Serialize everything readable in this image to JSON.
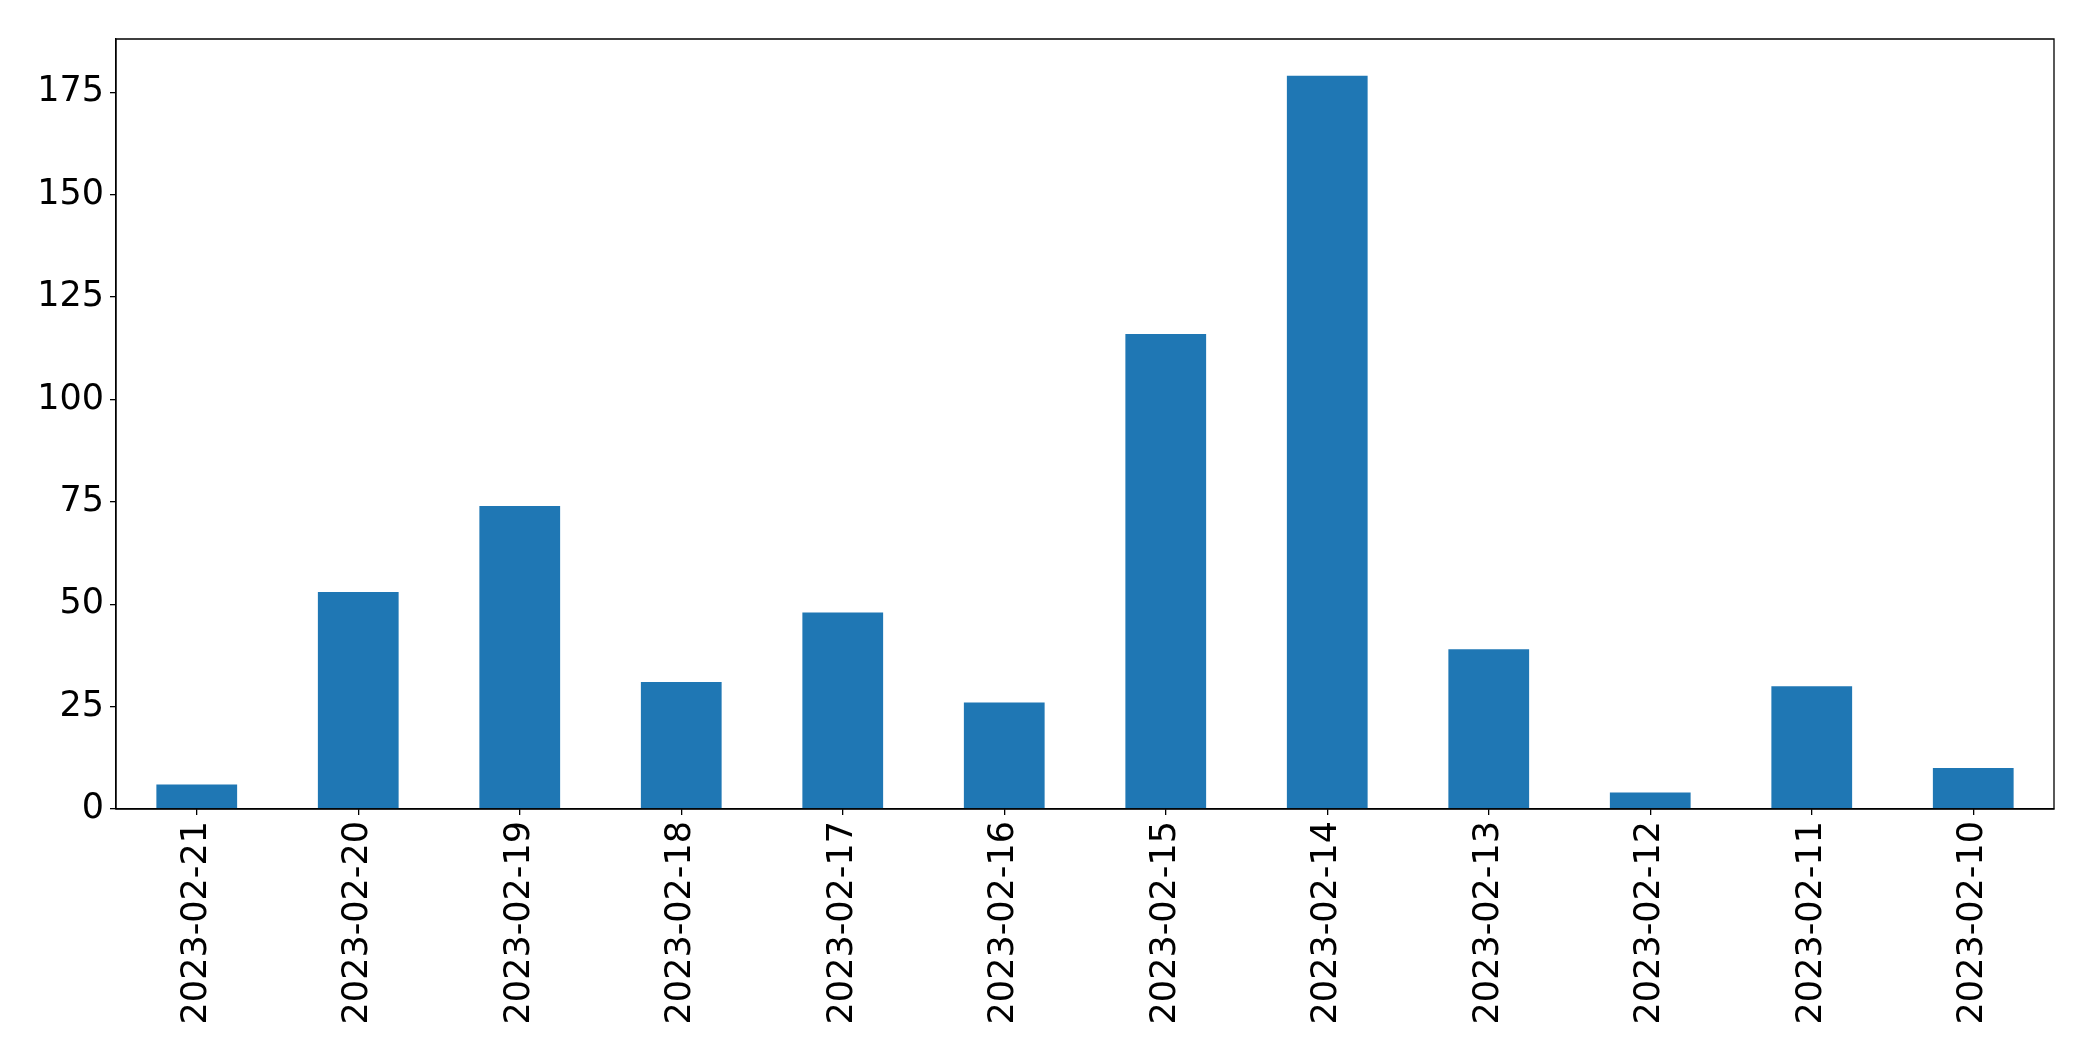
{
  "chart_data": {
    "type": "bar",
    "categories": [
      "2023-02-21",
      "2023-02-20",
      "2023-02-19",
      "2023-02-18",
      "2023-02-17",
      "2023-02-16",
      "2023-02-15",
      "2023-02-14",
      "2023-02-13",
      "2023-02-12",
      "2023-02-11",
      "2023-02-10"
    ],
    "values": [
      6,
      53,
      74,
      31,
      48,
      26,
      116,
      179,
      39,
      4,
      30,
      10
    ],
    "color": "#1f77b4",
    "ylim": [
      0,
      188
    ],
    "yticks": [
      0,
      25,
      50,
      75,
      100,
      125,
      150,
      175
    ]
  }
}
